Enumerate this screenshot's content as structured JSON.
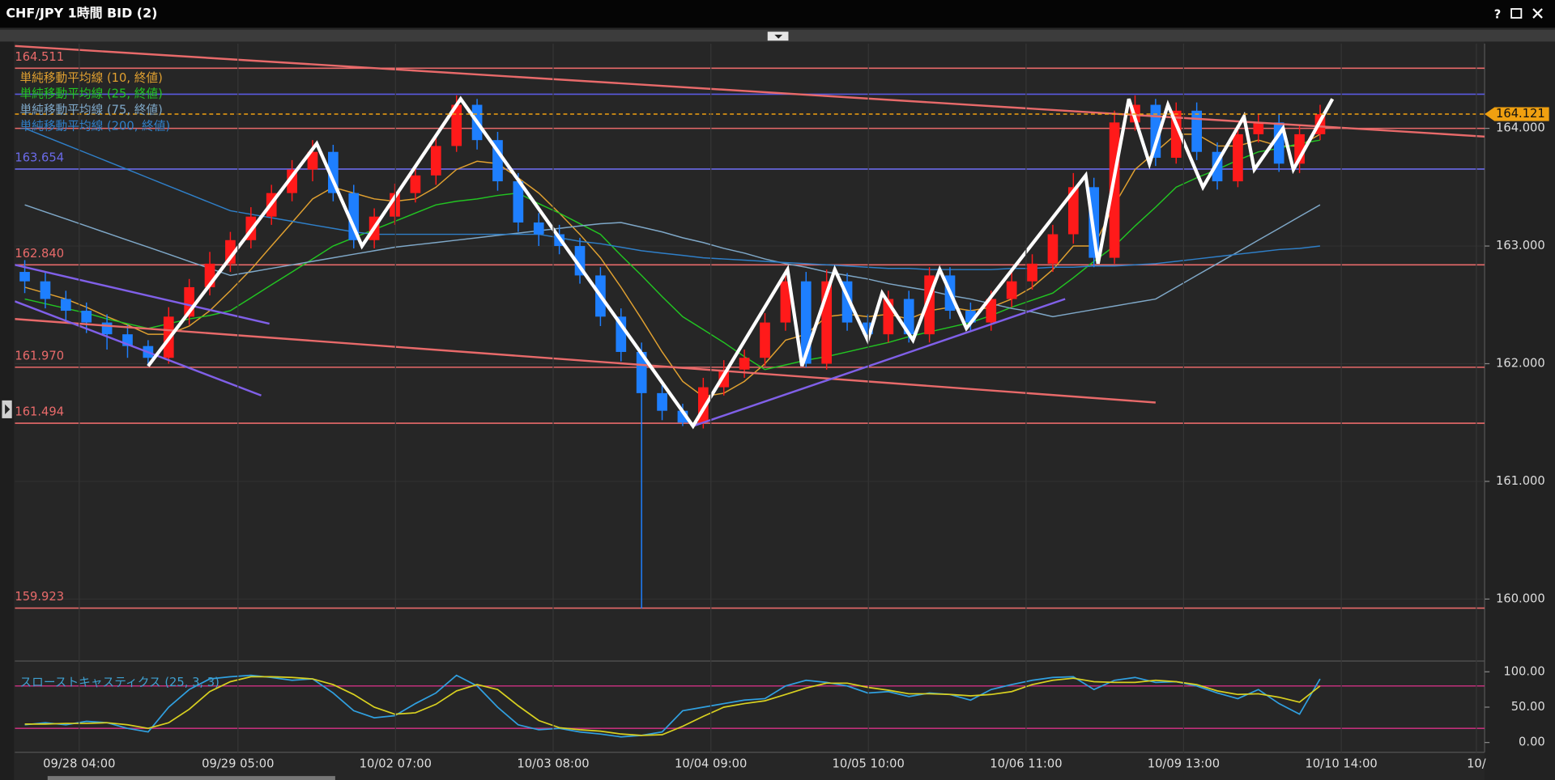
{
  "window": {
    "title": "CHF/JPY 1時間 BID (2)",
    "help": "?"
  },
  "chart_data": [
    {
      "type": "candlestick",
      "up_color": "#ff1a1a",
      "down_color": "#1e7fff",
      "open": [
        162.78,
        162.7,
        162.55,
        162.45,
        162.35,
        162.25,
        162.15,
        162.05,
        162.4,
        162.65,
        162.85,
        163.05,
        163.25,
        163.45,
        163.65,
        163.8,
        163.45,
        163.05,
        163.25,
        163.45,
        163.6,
        163.85,
        164.2,
        163.9,
        163.55,
        163.2,
        163.1,
        163.0,
        162.75,
        162.4,
        162.1,
        161.75,
        161.6,
        161.5,
        161.8,
        161.95,
        162.05,
        162.35,
        162.7,
        162.0,
        162.7,
        162.35,
        162.25,
        162.55,
        162.25,
        162.75,
        162.45,
        162.35,
        162.55,
        162.7,
        162.85,
        163.1,
        163.5,
        162.9,
        164.05,
        164.2,
        163.75,
        164.15,
        163.8,
        163.55,
        163.95,
        164.05,
        163.7,
        163.95
      ],
      "high": [
        162.88,
        162.78,
        162.62,
        162.52,
        162.42,
        162.33,
        162.2,
        162.48,
        162.72,
        162.95,
        163.12,
        163.33,
        163.52,
        163.73,
        163.9,
        163.86,
        163.52,
        163.32,
        163.53,
        163.68,
        163.93,
        164.28,
        164.25,
        163.97,
        163.62,
        163.28,
        163.18,
        163.07,
        162.82,
        162.47,
        162.18,
        161.82,
        161.66,
        161.88,
        162.03,
        162.12,
        162.43,
        162.8,
        162.78,
        162.8,
        162.77,
        162.42,
        162.62,
        162.62,
        162.82,
        162.82,
        162.52,
        162.62,
        162.78,
        162.93,
        163.18,
        163.62,
        163.58,
        164.15,
        164.28,
        164.25,
        164.22,
        164.22,
        163.88,
        164.03,
        164.12,
        164.12,
        164.03,
        164.2
      ],
      "low": [
        162.6,
        162.47,
        162.36,
        162.26,
        162.12,
        162.05,
        161.98,
        162.0,
        162.33,
        162.58,
        162.78,
        162.98,
        163.18,
        163.38,
        163.55,
        163.38,
        162.98,
        162.98,
        163.18,
        163.37,
        163.52,
        163.8,
        163.82,
        163.47,
        163.12,
        163.0,
        162.93,
        162.68,
        162.32,
        162.02,
        159.92,
        161.52,
        161.47,
        161.45,
        161.73,
        161.88,
        161.98,
        162.28,
        161.97,
        161.95,
        162.28,
        162.18,
        162.18,
        162.18,
        162.18,
        162.38,
        162.28,
        162.28,
        162.48,
        162.63,
        162.78,
        163.02,
        162.82,
        162.85,
        163.98,
        163.68,
        163.7,
        163.73,
        163.48,
        163.5,
        163.88,
        163.63,
        163.62,
        163.9
      ],
      "close": [
        162.7,
        162.55,
        162.45,
        162.35,
        162.25,
        162.15,
        162.05,
        162.4,
        162.65,
        162.85,
        163.05,
        163.25,
        163.45,
        163.65,
        163.8,
        163.45,
        163.05,
        163.25,
        163.45,
        163.6,
        163.85,
        164.2,
        163.9,
        163.55,
        163.2,
        163.1,
        163.0,
        162.75,
        162.4,
        162.1,
        161.75,
        161.6,
        161.5,
        161.8,
        161.95,
        162.05,
        162.35,
        162.7,
        162.0,
        162.7,
        162.35,
        162.25,
        162.55,
        162.25,
        162.75,
        162.45,
        162.35,
        162.55,
        162.7,
        162.85,
        163.1,
        163.5,
        162.9,
        164.05,
        164.2,
        163.75,
        164.15,
        163.8,
        163.55,
        163.95,
        164.05,
        163.7,
        163.95,
        164.12
      ],
      "series": [
        {
          "name": "単純移動平均線 (10, 終値)",
          "color": "#e0a030",
          "values": [
            162.65,
            162.6,
            162.55,
            162.48,
            162.4,
            162.33,
            162.25,
            162.25,
            162.32,
            162.45,
            162.62,
            162.8,
            163.0,
            163.2,
            163.4,
            163.5,
            163.45,
            163.4,
            163.38,
            163.4,
            163.5,
            163.65,
            163.72,
            163.7,
            163.58,
            163.45,
            163.28,
            163.1,
            162.9,
            162.65,
            162.38,
            162.1,
            161.85,
            161.72,
            161.75,
            161.85,
            162.0,
            162.2,
            162.25,
            162.4,
            162.42,
            162.4,
            162.42,
            162.38,
            162.45,
            162.48,
            162.45,
            162.48,
            162.55,
            162.65,
            162.8,
            163.0,
            163.0,
            163.35,
            163.65,
            163.8,
            163.95,
            163.95,
            163.85,
            163.85,
            163.9,
            163.85,
            163.85,
            163.95
          ]
        },
        {
          "name": "単純移動平均線 (25, 終値)",
          "color": "#22c422",
          "values": [
            162.55,
            162.51,
            162.47,
            162.43,
            162.38,
            162.34,
            162.3,
            162.34,
            162.38,
            162.41,
            162.45,
            162.56,
            162.67,
            162.78,
            162.89,
            163.0,
            163.07,
            163.14,
            163.21,
            163.28,
            163.35,
            163.38,
            163.4,
            163.43,
            163.45,
            163.36,
            163.28,
            163.19,
            163.1,
            162.92,
            162.75,
            162.57,
            162.4,
            162.29,
            162.18,
            162.06,
            161.95,
            161.99,
            162.03,
            162.06,
            162.1,
            162.14,
            162.18,
            162.23,
            162.27,
            162.31,
            162.35,
            162.41,
            162.48,
            162.54,
            162.6,
            162.73,
            162.87,
            163.0,
            163.17,
            163.33,
            163.5,
            163.58,
            163.65,
            163.73,
            163.8,
            163.83,
            163.87,
            163.9
          ]
        },
        {
          "name": "単純移動平均線 (75, 終値)",
          "color": "#7fa8c8",
          "values": [
            163.35,
            163.29,
            163.23,
            163.17,
            163.11,
            163.05,
            162.99,
            162.93,
            162.87,
            162.81,
            162.75,
            162.78,
            162.81,
            162.84,
            162.87,
            162.9,
            162.93,
            162.96,
            162.99,
            163.01,
            163.03,
            163.05,
            163.07,
            163.09,
            163.11,
            163.13,
            163.15,
            163.17,
            163.19,
            163.2,
            163.16,
            163.12,
            163.07,
            163.03,
            162.98,
            162.94,
            162.89,
            162.85,
            162.82,
            162.78,
            162.75,
            162.72,
            162.68,
            162.65,
            162.62,
            162.58,
            162.55,
            162.51,
            162.47,
            162.44,
            162.4,
            162.43,
            162.46,
            162.49,
            162.52,
            162.55,
            162.65,
            162.75,
            162.85,
            162.95,
            163.05,
            163.15,
            163.25,
            163.35
          ]
        },
        {
          "name": "単純移動平均線 (200, 終値)",
          "color": "#2f7fc8",
          "values": [
            164.0,
            163.93,
            163.86,
            163.79,
            163.72,
            163.65,
            163.58,
            163.51,
            163.44,
            163.37,
            163.3,
            163.27,
            163.24,
            163.21,
            163.18,
            163.15,
            163.12,
            163.1,
            163.1,
            163.1,
            163.1,
            163.1,
            163.1,
            163.1,
            163.1,
            163.1,
            163.07,
            163.04,
            163.02,
            162.99,
            162.96,
            162.94,
            162.92,
            162.9,
            162.89,
            162.88,
            162.87,
            162.86,
            162.85,
            162.84,
            162.83,
            162.82,
            162.81,
            162.81,
            162.8,
            162.8,
            162.8,
            162.8,
            162.81,
            162.81,
            162.82,
            162.82,
            162.83,
            162.83,
            162.84,
            162.85,
            162.87,
            162.89,
            162.91,
            162.93,
            162.95,
            162.97,
            162.98,
            163.0
          ]
        }
      ],
      "zigzag": {
        "color": "#ffffff",
        "x": [
          6.0,
          14.2,
          16.4,
          21.2,
          32.5,
          37.1,
          37.8,
          39.4,
          41.0,
          41.7,
          43.2,
          44.5,
          45.8,
          51.6,
          52.2,
          53.7,
          54.7,
          55.6,
          57.3,
          59.3,
          59.8,
          61.2,
          61.7,
          63.6
        ],
        "values": [
          161.98,
          163.87,
          163.0,
          164.25,
          161.47,
          162.8,
          161.98,
          162.8,
          162.2,
          162.6,
          162.2,
          162.8,
          162.3,
          163.6,
          162.85,
          164.25,
          163.7,
          164.2,
          163.5,
          164.1,
          163.65,
          164.0,
          163.65,
          164.25
        ]
      },
      "trendlines": [
        {
          "color": "#e86a6a",
          "x": [
            -0.48,
            71
          ],
          "values": [
            164.7,
            163.93
          ]
        },
        {
          "color": "#e86a6a",
          "x": [
            -0.48,
            55.0
          ],
          "values": [
            162.38,
            161.67
          ]
        },
        {
          "color": "#8060e8",
          "x": [
            -0.48,
            11.9
          ],
          "values": [
            162.84,
            162.34
          ]
        },
        {
          "color": "#8060e8",
          "x": [
            -0.48,
            11.5
          ],
          "values": [
            162.53,
            161.73
          ]
        },
        {
          "color": "#8060e8",
          "x": [
            32.5,
            50.6
          ],
          "values": [
            161.47,
            162.55
          ]
        }
      ],
      "levels": [
        {
          "value": 164.511,
          "label": "164.511",
          "color": "#e86a6a"
        },
        {
          "value": 164.29,
          "color": "#5a5ae0"
        },
        {
          "value": 164.0,
          "color": "#e86a6a"
        },
        {
          "value": 163.654,
          "label": "163.654",
          "color": "#6a6ae8"
        },
        {
          "value": 162.84,
          "label": "162.840",
          "color": "#e86a6a"
        },
        {
          "value": 161.97,
          "label": "161.970",
          "color": "#e86a6a"
        },
        {
          "value": 161.494,
          "label": "161.494",
          "color": "#e86a6a"
        },
        {
          "value": 159.923,
          "label": "159.923",
          "color": "#e86a6a"
        }
      ],
      "current_price": {
        "value": 164.121,
        "label": "164.121",
        "color": "#f0a010"
      },
      "xlim": [
        -0.48,
        71
      ],
      "xticks": [
        {
          "value": 2.65,
          "label": "09/28 04:00"
        },
        {
          "value": 10.37,
          "label": "09/29 05:00"
        },
        {
          "value": 18.03,
          "label": "10/02 07:00"
        },
        {
          "value": 25.7,
          "label": "10/03 08:00"
        },
        {
          "value": 33.37,
          "label": "10/04 09:00"
        },
        {
          "value": 41.03,
          "label": "10/05 10:00"
        },
        {
          "value": 48.7,
          "label": "10/06 11:00"
        },
        {
          "value": 56.36,
          "label": "10/09 13:00"
        },
        {
          "value": 64.03,
          "label": "10/10 14:00"
        },
        {
          "value": 70.6,
          "label": "10/"
        }
      ],
      "ylim": [
        159.49,
        164.72
      ],
      "yticks": [
        {
          "value": 160,
          "label": "160.000"
        },
        {
          "value": 161,
          "label": "161.000"
        },
        {
          "value": 162,
          "label": "162.000"
        },
        {
          "value": 163,
          "label": "163.000"
        },
        {
          "value": 164,
          "label": "164.000"
        }
      ]
    },
    {
      "type": "line",
      "title": "スローストキャスティクス (25, 3, 3)",
      "series": [
        {
          "color": "#30a0e0",
          "values": [
            25,
            28,
            25,
            30,
            28,
            20,
            15,
            50,
            75,
            90,
            93,
            95,
            92,
            88,
            90,
            70,
            45,
            35,
            38,
            55,
            70,
            95,
            80,
            50,
            25,
            18,
            20,
            15,
            12,
            8,
            10,
            15,
            45,
            50,
            55,
            60,
            62,
            80,
            88,
            85,
            80,
            70,
            72,
            65,
            70,
            68,
            60,
            75,
            82,
            88,
            92,
            93,
            75,
            88,
            92,
            85,
            86,
            80,
            70,
            62,
            75,
            55,
            40,
            90
          ]
        },
        {
          "color": "#d8d020",
          "values": [
            26,
            26,
            27,
            27,
            28,
            25,
            20,
            28,
            47,
            72,
            86,
            93,
            93,
            92,
            90,
            82,
            68,
            50,
            40,
            42,
            54,
            73,
            82,
            75,
            52,
            31,
            21,
            18,
            16,
            12,
            10,
            11,
            23,
            37,
            50,
            55,
            59,
            68,
            77,
            84,
            84,
            78,
            74,
            69,
            69,
            68,
            66,
            68,
            72,
            82,
            88,
            91,
            86,
            85,
            85,
            88,
            86,
            82,
            73,
            68,
            69,
            64,
            57,
            80
          ]
        }
      ],
      "levels": [
        20,
        80
      ],
      "level_color": "#c0307a",
      "xlim": [
        -0.48,
        71
      ],
      "ylim": [
        -11,
        111
      ],
      "yticks": [
        {
          "value": 0,
          "label": "0.00"
        },
        {
          "value": 50,
          "label": "50.00"
        },
        {
          "value": 100,
          "label": "100.00"
        }
      ]
    }
  ]
}
